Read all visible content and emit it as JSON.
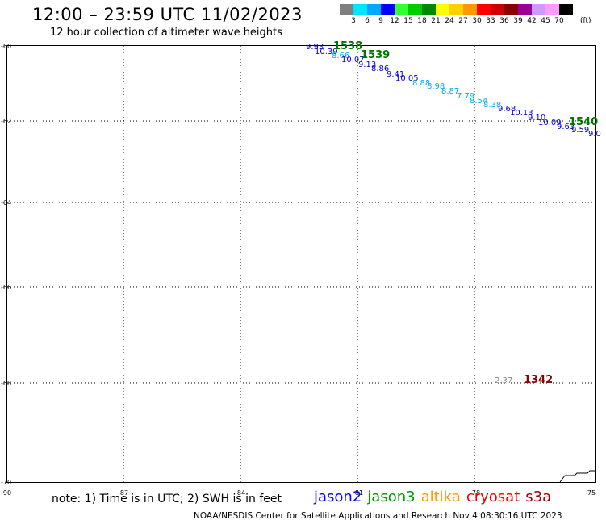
{
  "header": {
    "title": "12:00 – 23:59 UTC 11/02/2023",
    "subtitle": "12 hour collection of altimeter wave heights"
  },
  "legend": {
    "unit": "(ft)",
    "colors": [
      "#7f7f7f",
      "#00e5ff",
      "#00a8ff",
      "#0000ff",
      "#33ff33",
      "#00cc00",
      "#008800",
      "#ffff00",
      "#ffd000",
      "#ff9900",
      "#ff0000",
      "#cc0000",
      "#880000",
      "#990099",
      "#cc99ff",
      "#ff99ff",
      "#000000"
    ],
    "labels": [
      "3",
      "6",
      "9",
      "12",
      "15",
      "18",
      "21",
      "24",
      "27",
      "30",
      "33",
      "36",
      "39",
      "42",
      "45",
      "70"
    ]
  },
  "axes": {
    "lat_labels": [
      "-60",
      "-62",
      "-64",
      "-66",
      "-68",
      "-70"
    ],
    "lon_labels": [
      "-90",
      "-87",
      "-84",
      "-81",
      "-78",
      "-75"
    ]
  },
  "tracks": {
    "swh_labels": [
      {
        "text": "9.93",
        "color": "#0000cc"
      },
      {
        "text": "10.39",
        "color": "#0000cc"
      },
      {
        "text": "8.66",
        "color": "#00aaee"
      },
      {
        "text": "10.07",
        "color": "#0000cc"
      },
      {
        "text": "9.13",
        "color": "#0000cc"
      },
      {
        "text": "8.86",
        "color": "#0000cc"
      },
      {
        "text": "9.41",
        "color": "#0000cc"
      },
      {
        "text": "10.05",
        "color": "#0000cc"
      },
      {
        "text": "8.88",
        "color": "#00aaee"
      },
      {
        "text": "8.98",
        "color": "#00aaee"
      },
      {
        "text": "8.87",
        "color": "#00aaee"
      },
      {
        "text": "7.79",
        "color": "#00aaee"
      },
      {
        "text": "8.54",
        "color": "#00aaee"
      },
      {
        "text": "8.38",
        "color": "#00aaee"
      },
      {
        "text": "9.68",
        "color": "#0000cc"
      },
      {
        "text": "10.13",
        "color": "#0000cc"
      },
      {
        "text": "9.10",
        "color": "#0000cc"
      },
      {
        "text": "10.09",
        "color": "#0000cc"
      },
      {
        "text": "9.63",
        "color": "#0000cc"
      },
      {
        "text": "9.59",
        "color": "#0000cc"
      },
      {
        "text": "9.0",
        "color": "#0000cc"
      },
      {
        "text": "2.37",
        "color": "#888888"
      }
    ],
    "time_labels": [
      {
        "text": "1538",
        "color": "#007700"
      },
      {
        "text": "1539",
        "color": "#007700"
      },
      {
        "text": "1540",
        "color": "#007700"
      },
      {
        "text": "1342",
        "color": "#880000"
      }
    ]
  },
  "footer": {
    "note": "note: 1) Time is in UTC; 2) SWH is in feet",
    "satellites": [
      {
        "name": "jason2",
        "color": "#0000ff"
      },
      {
        "name": "jason3",
        "color": "#009900"
      },
      {
        "name": "altika",
        "color": "#ff9900"
      },
      {
        "name": "cryosat",
        "color": "#ee0000"
      },
      {
        "name": "s3a",
        "color": "#990000"
      }
    ],
    "credit": "NOAA/NESDIS Center for Satellite Applications and Research    Nov  4 08:30:16 UTC 2023"
  }
}
